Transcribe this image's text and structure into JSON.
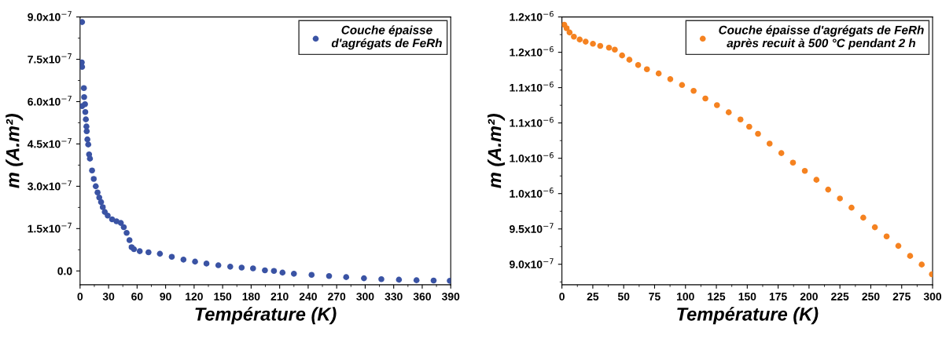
{
  "chart_data": [
    {
      "type": "scatter",
      "xlabel": "Température (K)",
      "ylabel": "m (A.m²)",
      "marker": "circle",
      "legend": "top right",
      "grid": false,
      "xlim": [
        0,
        390
      ],
      "xticks": [
        0,
        30,
        60,
        90,
        120,
        150,
        180,
        210,
        240,
        270,
        300,
        330,
        360,
        390
      ],
      "ylim": [
        -4.9e-08,
        9e-07
      ],
      "yticks": [
        {
          "value": 0,
          "label": "0.0"
        },
        {
          "value": 1.5e-07,
          "label": "1.5x10$^{−7}$"
        },
        {
          "value": 3e-07,
          "label": "3.0x10$^{−7}$"
        },
        {
          "value": 4.5e-07,
          "label": "4.5x10$^{−7}$"
        },
        {
          "value": 6e-07,
          "label": "6.0x10$^{−7}$"
        },
        {
          "value": 7.5e-07,
          "label": "7.5x10$^{−7}$"
        },
        {
          "value": 9e-07,
          "label": "9.0x10$^{−7}$"
        }
      ],
      "series": [
        {
          "name": "Couche épaisse\nd'agrégats de FeRh",
          "color": "#3a53a4",
          "x": [
            2.1,
            1.8,
            2.1,
            4.0,
            4.3,
            2.1,
            5.2,
            5.5,
            6.1,
            6.7,
            7.0,
            7.7,
            8.6,
            9.5,
            10.4,
            12.6,
            14.4,
            16.5,
            18.4,
            20.2,
            22.1,
            23.9,
            26.0,
            29.1,
            33.7,
            38.3,
            42.9,
            46,
            49,
            52,
            54.2,
            56.7,
            62.8,
            72,
            84,
            96.5,
            108.8,
            121,
            133,
            145.5,
            158,
            170,
            182,
            194.5,
            204,
            213,
            225,
            243.6,
            262,
            280,
            298.7,
            317,
            335.5,
            354,
            372,
            389
          ],
          "values": [
            8.82e-07,
            7.39e-07,
            7.23e-07,
            6.48e-07,
            6.16e-07,
            5.84e-07,
            5.91e-07,
            5.63e-07,
            5.37e-07,
            5.12e-07,
            4.95e-07,
            4.66e-07,
            4.48e-07,
            4.13e-07,
            3.98e-07,
            3.56e-07,
            3.26e-07,
            3e-07,
            2.78e-07,
            2.6e-07,
            2.44e-07,
            2.26e-07,
            2.09e-07,
            1.96e-07,
            1.83e-07,
            1.76e-07,
            1.7e-07,
            1.55e-07,
            1.35e-07,
            1.09e-07,
            8.4e-08,
            7.7e-08,
            7e-08,
            6.6e-08,
            6.1e-08,
            5e-08,
            4e-08,
            3.3e-08,
            2.6e-08,
            2e-08,
            1.5e-08,
            1.2e-08,
            9e-09,
            2e-09,
            0,
            -6e-09,
            -1e-08,
            -1.4e-08,
            -1.8e-08,
            -2.2e-08,
            -2.6e-08,
            -2.9e-08,
            -3.1e-08,
            -3.3e-08,
            -3.4e-08,
            -3.5e-08
          ]
        }
      ]
    },
    {
      "type": "scatter",
      "xlabel": "Température (K)",
      "ylabel": "m (A.m²)",
      "marker": "circle",
      "legend": "top right",
      "grid": false,
      "xlim": [
        0,
        300
      ],
      "xticks": [
        0,
        25,
        50,
        75,
        100,
        125,
        150,
        175,
        200,
        225,
        250,
        275,
        300
      ],
      "ylim": [
        8.71e-07,
        1.25e-06
      ],
      "yticks": [
        {
          "value": 9e-07,
          "label": "9.0x10$^{−7}$"
        },
        {
          "value": 9.5e-07,
          "label": "9.5x10$^{−7}$"
        },
        {
          "value": 1e-06,
          "label": "1.0x10$^{−6}$"
        },
        {
          "value": 1.05e-06,
          "label": "1.0x10$^{−6}$"
        },
        {
          "value": 1.1e-06,
          "label": "1.1x10$^{−6}$"
        },
        {
          "value": 1.15e-06,
          "label": "1.1x10$^{−6}$"
        },
        {
          "value": 1.2e-06,
          "label": "1.2x10$^{−6}$"
        },
        {
          "value": 1.25e-06,
          "label": "1.2x10$^{−6}$"
        }
      ],
      "series": [
        {
          "name": "Couche épaisse d'agrégats de FeRh\naprès recuit à 500 °C pendant 2 h",
          "color": "#f58220",
          "x": [
            1.9,
            3.8,
            6.2,
            9.7,
            14.4,
            19.2,
            25.1,
            31,
            38.1,
            42.8,
            48.7,
            54.6,
            61.7,
            68.8,
            78.3,
            87.7,
            97.2,
            106.6,
            116.1,
            125.5,
            135,
            144.5,
            151.6,
            158.7,
            168.1,
            177.6,
            187,
            196.6,
            206,
            215.5,
            225,
            234.4,
            243.9,
            253.3,
            262.8,
            272.3,
            281.8,
            291.2,
            299.5
          ],
          "values": [
            1.239e-06,
            1.234e-06,
            1.228e-06,
            1.222e-06,
            1.218e-06,
            1.215e-06,
            1.212e-06,
            1.209e-06,
            1.2065e-06,
            1.2037e-06,
            1.1955e-06,
            1.1894e-06,
            1.182e-06,
            1.176e-06,
            1.17e-06,
            1.162e-06,
            1.1537e-06,
            1.1455e-06,
            1.1346e-06,
            1.1252e-06,
            1.115e-06,
            1.1049e-06,
            1.0947e-06,
            1.0846e-06,
            1.0707e-06,
            1.0573e-06,
            1.0439e-06,
            1.0321e-06,
            1.0195e-06,
            1.0057e-06,
            9.931e-07,
            9.801e-07,
            9.659e-07,
            9.524e-07,
            9.394e-07,
            9.26e-07,
            9.118e-07,
            8.996e-07,
            8.858e-07
          ]
        }
      ]
    }
  ]
}
